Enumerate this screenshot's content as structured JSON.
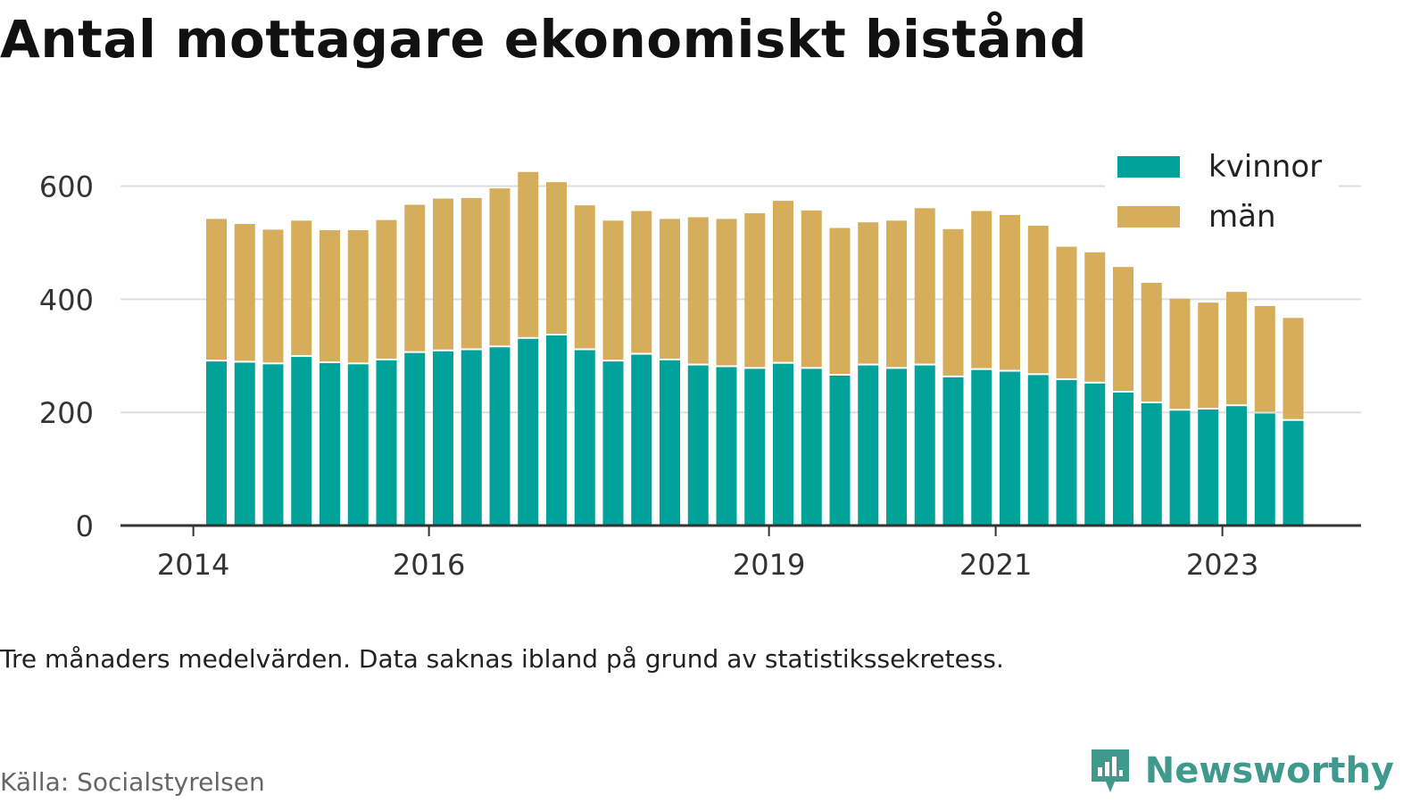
{
  "title": "Antal mottagare ekonomiskt bistånd",
  "note": "Tre månaders medelvärden. Data saknas ibland på grund av statistikssekretess.",
  "source": "Källa: Socialstyrelsen",
  "brand": {
    "name": "Newsworthy",
    "logo_icon": "newsworthy-chart-bubble-icon"
  },
  "colors": {
    "kvinnor": "#00a29a",
    "man": "#d6ad5b",
    "grid": "#dddddd",
    "axis": "#333333",
    "brand": "#3f9a8d"
  },
  "chart_data": {
    "type": "bar",
    "stacked": true,
    "title": "Antal mottagare ekonomiskt bistånd",
    "xlabel": "",
    "ylabel": "",
    "ylim": [
      0,
      650
    ],
    "y_ticks": [
      0,
      200,
      400,
      600
    ],
    "x_ticks": [
      {
        "label": "2014",
        "index": -1
      },
      {
        "label": "2016",
        "index": 7
      },
      {
        "label": "2019",
        "index": 19
      },
      {
        "label": "2021",
        "index": 27
      },
      {
        "label": "2023",
        "index": 35
      }
    ],
    "grid": true,
    "legend_position": "top-right",
    "series": [
      {
        "name": "kvinnor",
        "values": [
          290,
          288,
          285,
          298,
          287,
          285,
          292,
          305,
          308,
          310,
          315,
          330,
          336,
          310,
          290,
          302,
          292,
          283,
          280,
          277,
          286,
          277,
          265,
          283,
          277,
          283,
          262,
          275,
          272,
          266,
          257,
          251,
          235,
          216,
          203,
          205,
          211,
          198,
          185
        ]
      },
      {
        "name": "män",
        "values": [
          252,
          245,
          238,
          241,
          235,
          237,
          248,
          262,
          270,
          269,
          281,
          295,
          271,
          256,
          249,
          254,
          250,
          262,
          262,
          275,
          288,
          280,
          261,
          253,
          262,
          278,
          262,
          281,
          277,
          264,
          236,
          232,
          222,
          213,
          198,
          189,
          202,
          190,
          182
        ]
      }
    ]
  }
}
